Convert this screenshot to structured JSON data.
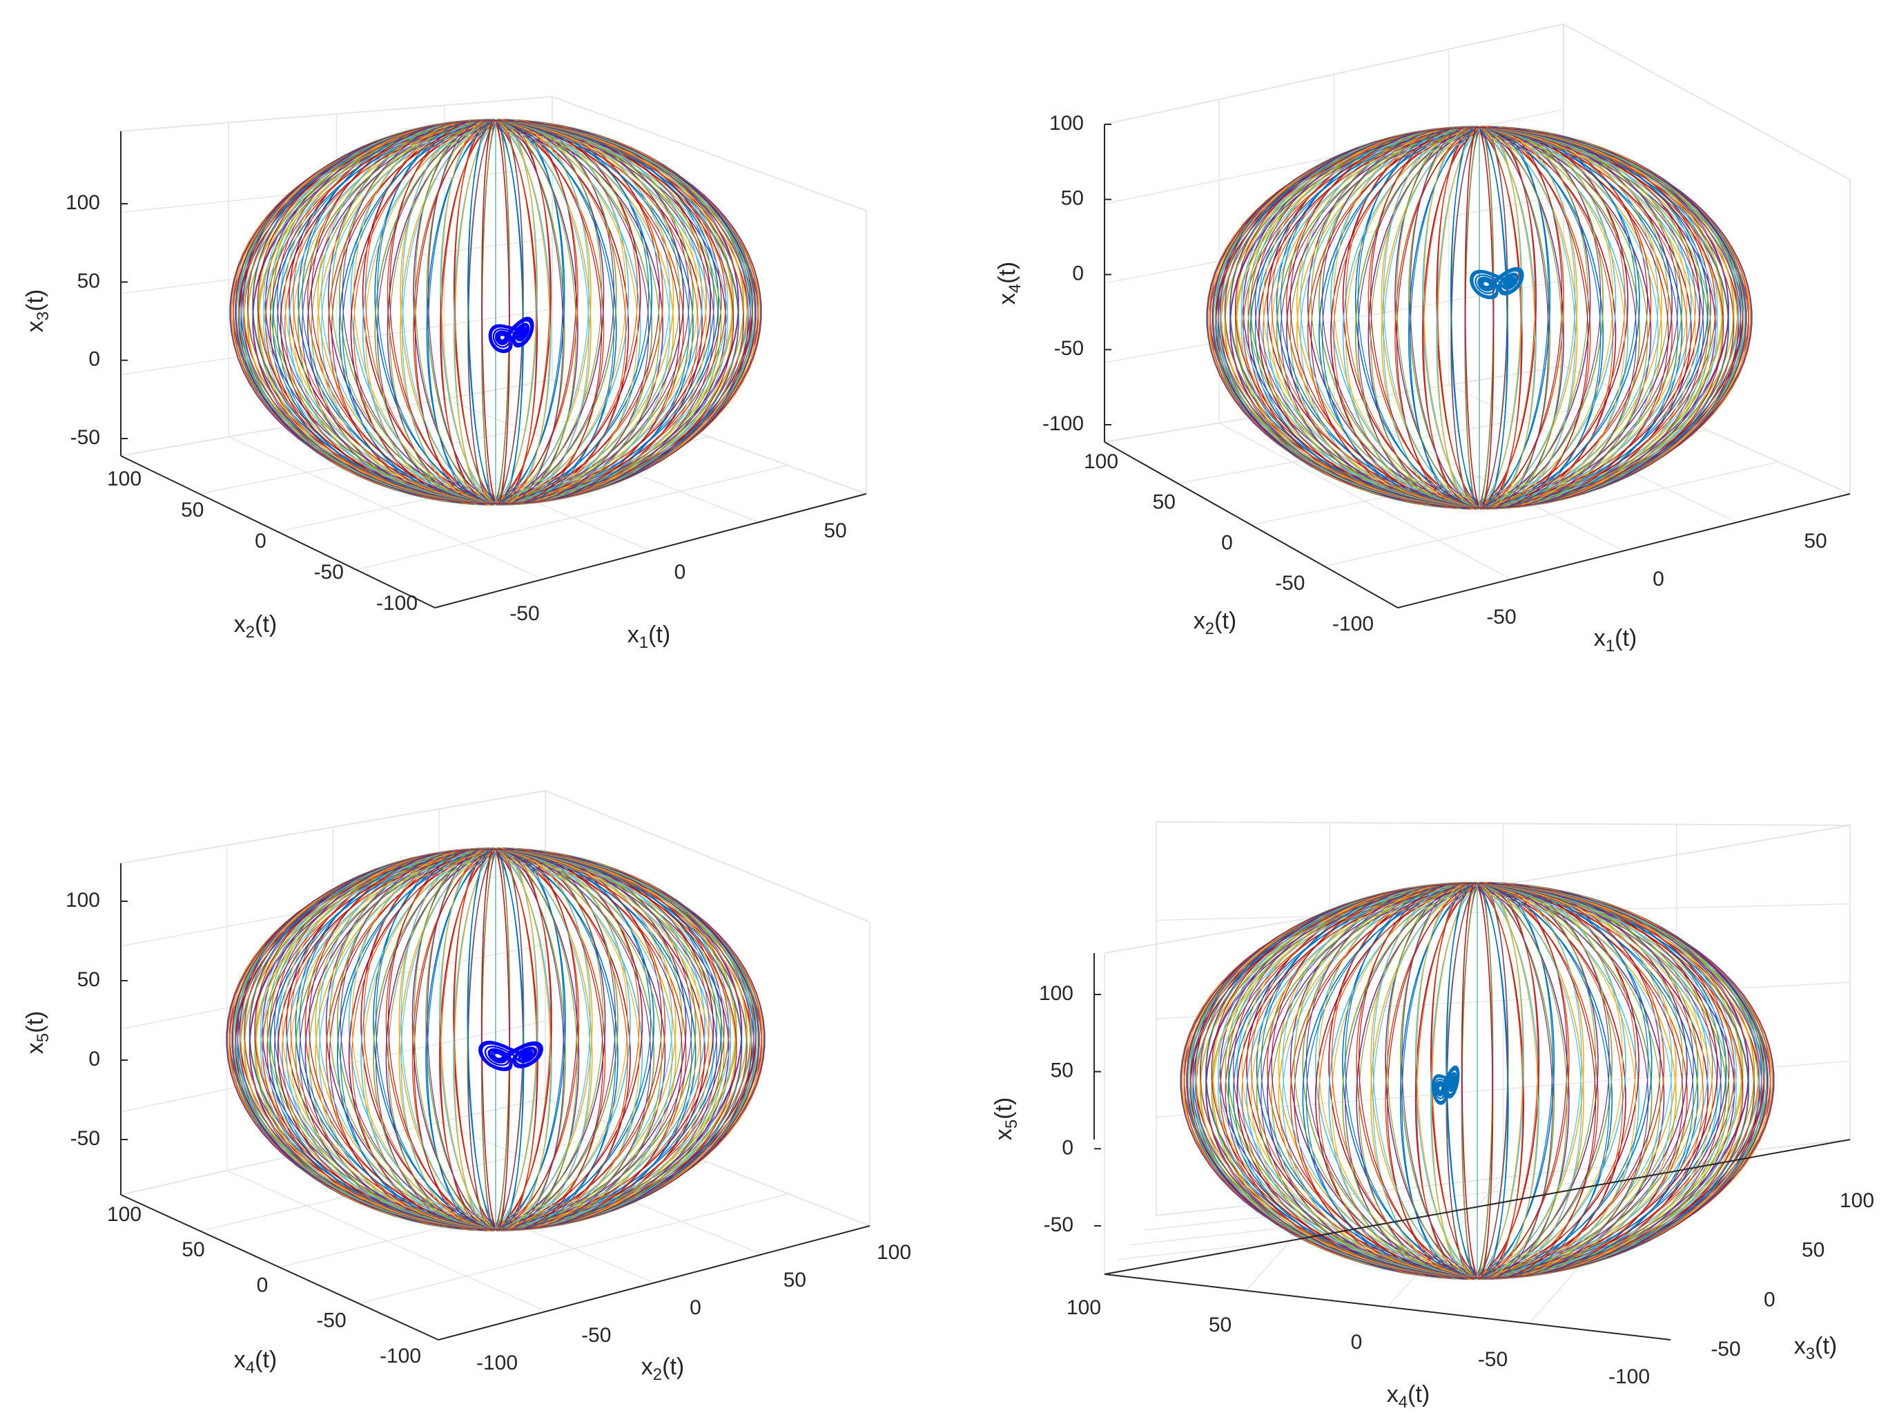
{
  "colors": {
    "meridians": [
      "#0072BD",
      "#D95319",
      "#EDB120",
      "#7E2F8E",
      "#77AC30",
      "#4DBEEE",
      "#A2142F"
    ],
    "attractor_blue": "#0000FF",
    "attractor_default": "#0072BD",
    "grid": "#E6E6E6",
    "axis": "#262626"
  },
  "chart_data": [
    {
      "type": "3d-line",
      "title": "",
      "xlabel": {
        "base": "x",
        "sub": "1",
        "suffix": "(t)"
      },
      "ylabel": {
        "base": "x",
        "sub": "2",
        "suffix": "(t)"
      },
      "zlabel": {
        "base": "x",
        "sub": "3",
        "suffix": "(t)"
      },
      "xticks": [
        "-50",
        "0",
        "50"
      ],
      "yticks": [
        "-100",
        "-50",
        "0",
        "50",
        "100"
      ],
      "zticks": [
        "-50",
        "0",
        "50",
        "100"
      ],
      "xlim": [
        -80,
        80
      ],
      "ylim": [
        -100,
        100
      ],
      "zlim": [
        -60,
        140
      ],
      "grid": true,
      "series": [
        {
          "kind": "ellipsoid-meridians",
          "center": [
            0,
            0,
            40
          ],
          "semi_axes": [
            60,
            90,
            90
          ],
          "count": 60
        },
        {
          "kind": "chaotic-attractor",
          "color": "#0000FF",
          "x_range": [
            -5,
            8
          ],
          "y_range": [
            -10,
            10
          ],
          "z_range": [
            5,
            40
          ]
        }
      ]
    },
    {
      "type": "3d-line",
      "title": "",
      "xlabel": {
        "base": "x",
        "sub": "1",
        "suffix": "(t)"
      },
      "ylabel": {
        "base": "x",
        "sub": "2",
        "suffix": "(t)"
      },
      "zlabel": {
        "base": "x",
        "sub": "4",
        "suffix": "(t)"
      },
      "xticks": [
        "-50",
        "0",
        "50"
      ],
      "yticks": [
        "-100",
        "-50",
        "0",
        "50",
        "100"
      ],
      "zticks": [
        "-100",
        "-50",
        "0",
        "50",
        "100"
      ],
      "xlim": [
        -80,
        80
      ],
      "ylim": [
        -100,
        100
      ],
      "zlim": [
        -100,
        100
      ],
      "grid": true,
      "series": [
        {
          "kind": "ellipsoid-meridians",
          "center": [
            0,
            0,
            0
          ],
          "semi_axes": [
            60,
            90,
            100
          ],
          "count": 60
        },
        {
          "kind": "chaotic-attractor",
          "color": "#0072BD",
          "x_range": [
            -8,
            8
          ],
          "y_range": [
            -10,
            10
          ],
          "z_range": [
            -20,
            10
          ]
        }
      ]
    },
    {
      "type": "3d-line",
      "title": "",
      "xlabel": {
        "base": "x",
        "sub": "2",
        "suffix": "(t)"
      },
      "ylabel": {
        "base": "x",
        "sub": "4",
        "suffix": "(t)"
      },
      "zlabel": {
        "base": "x",
        "sub": "5",
        "suffix": "(t)"
      },
      "xticks": [
        "-100",
        "-50",
        "0",
        "50",
        "100"
      ],
      "yticks": [
        "-100",
        "-50",
        "0",
        "50",
        "100"
      ],
      "zticks": [
        "-50",
        "0",
        "50",
        "100"
      ],
      "xlim": [
        -100,
        100
      ],
      "ylim": [
        -100,
        100
      ],
      "zlim": [
        -80,
        120
      ],
      "grid": true,
      "series": [
        {
          "kind": "ellipsoid-meridians",
          "center": [
            0,
            0,
            20
          ],
          "semi_axes": [
            90,
            90,
            100
          ],
          "count": 60
        },
        {
          "kind": "chaotic-attractor",
          "color": "#0000FF",
          "x_range": [
            -10,
            10
          ],
          "y_range": [
            -10,
            10
          ],
          "z_range": [
            -10,
            10
          ]
        }
      ]
    },
    {
      "type": "3d-line",
      "title": "",
      "xlabel": {
        "base": "x",
        "sub": "4",
        "suffix": "(t)"
      },
      "ylabel": {
        "base": "x",
        "sub": "3",
        "suffix": "(t)"
      },
      "zlabel": {
        "base": "x",
        "sub": "5",
        "suffix": "(t)"
      },
      "xticks": [
        "100",
        "50",
        "0",
        "-50",
        "-100"
      ],
      "yticks": [
        "-50",
        "0",
        "50",
        "100"
      ],
      "zticks": [
        "-50",
        "0",
        "50",
        "100"
      ],
      "xlim": [
        -100,
        100
      ],
      "ylim": [
        -60,
        120
      ],
      "zlim": [
        -80,
        120
      ],
      "grid": true,
      "series": [
        {
          "kind": "ellipsoid-meridians",
          "center": [
            0,
            30,
            30
          ],
          "semi_axes": [
            90,
            90,
            100
          ],
          "count": 60
        },
        {
          "kind": "chaotic-attractor",
          "color": "#0072BD",
          "x_range": [
            -5,
            5
          ],
          "y_range": [
            5,
            40
          ],
          "z_range": [
            0,
            40
          ]
        }
      ]
    }
  ]
}
